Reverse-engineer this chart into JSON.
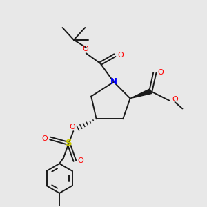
{
  "bg_color": "#e8e8e8",
  "bond_color": "#1a1a1a",
  "n_color": "#0000ff",
  "o_color": "#ff0000",
  "s_color": "#cccc00",
  "figsize": [
    3.0,
    3.0
  ],
  "dpi": 100,
  "xlim": [
    0,
    10
  ],
  "ylim": [
    0,
    10
  ],
  "lw": 1.4,
  "fs": 7.0
}
